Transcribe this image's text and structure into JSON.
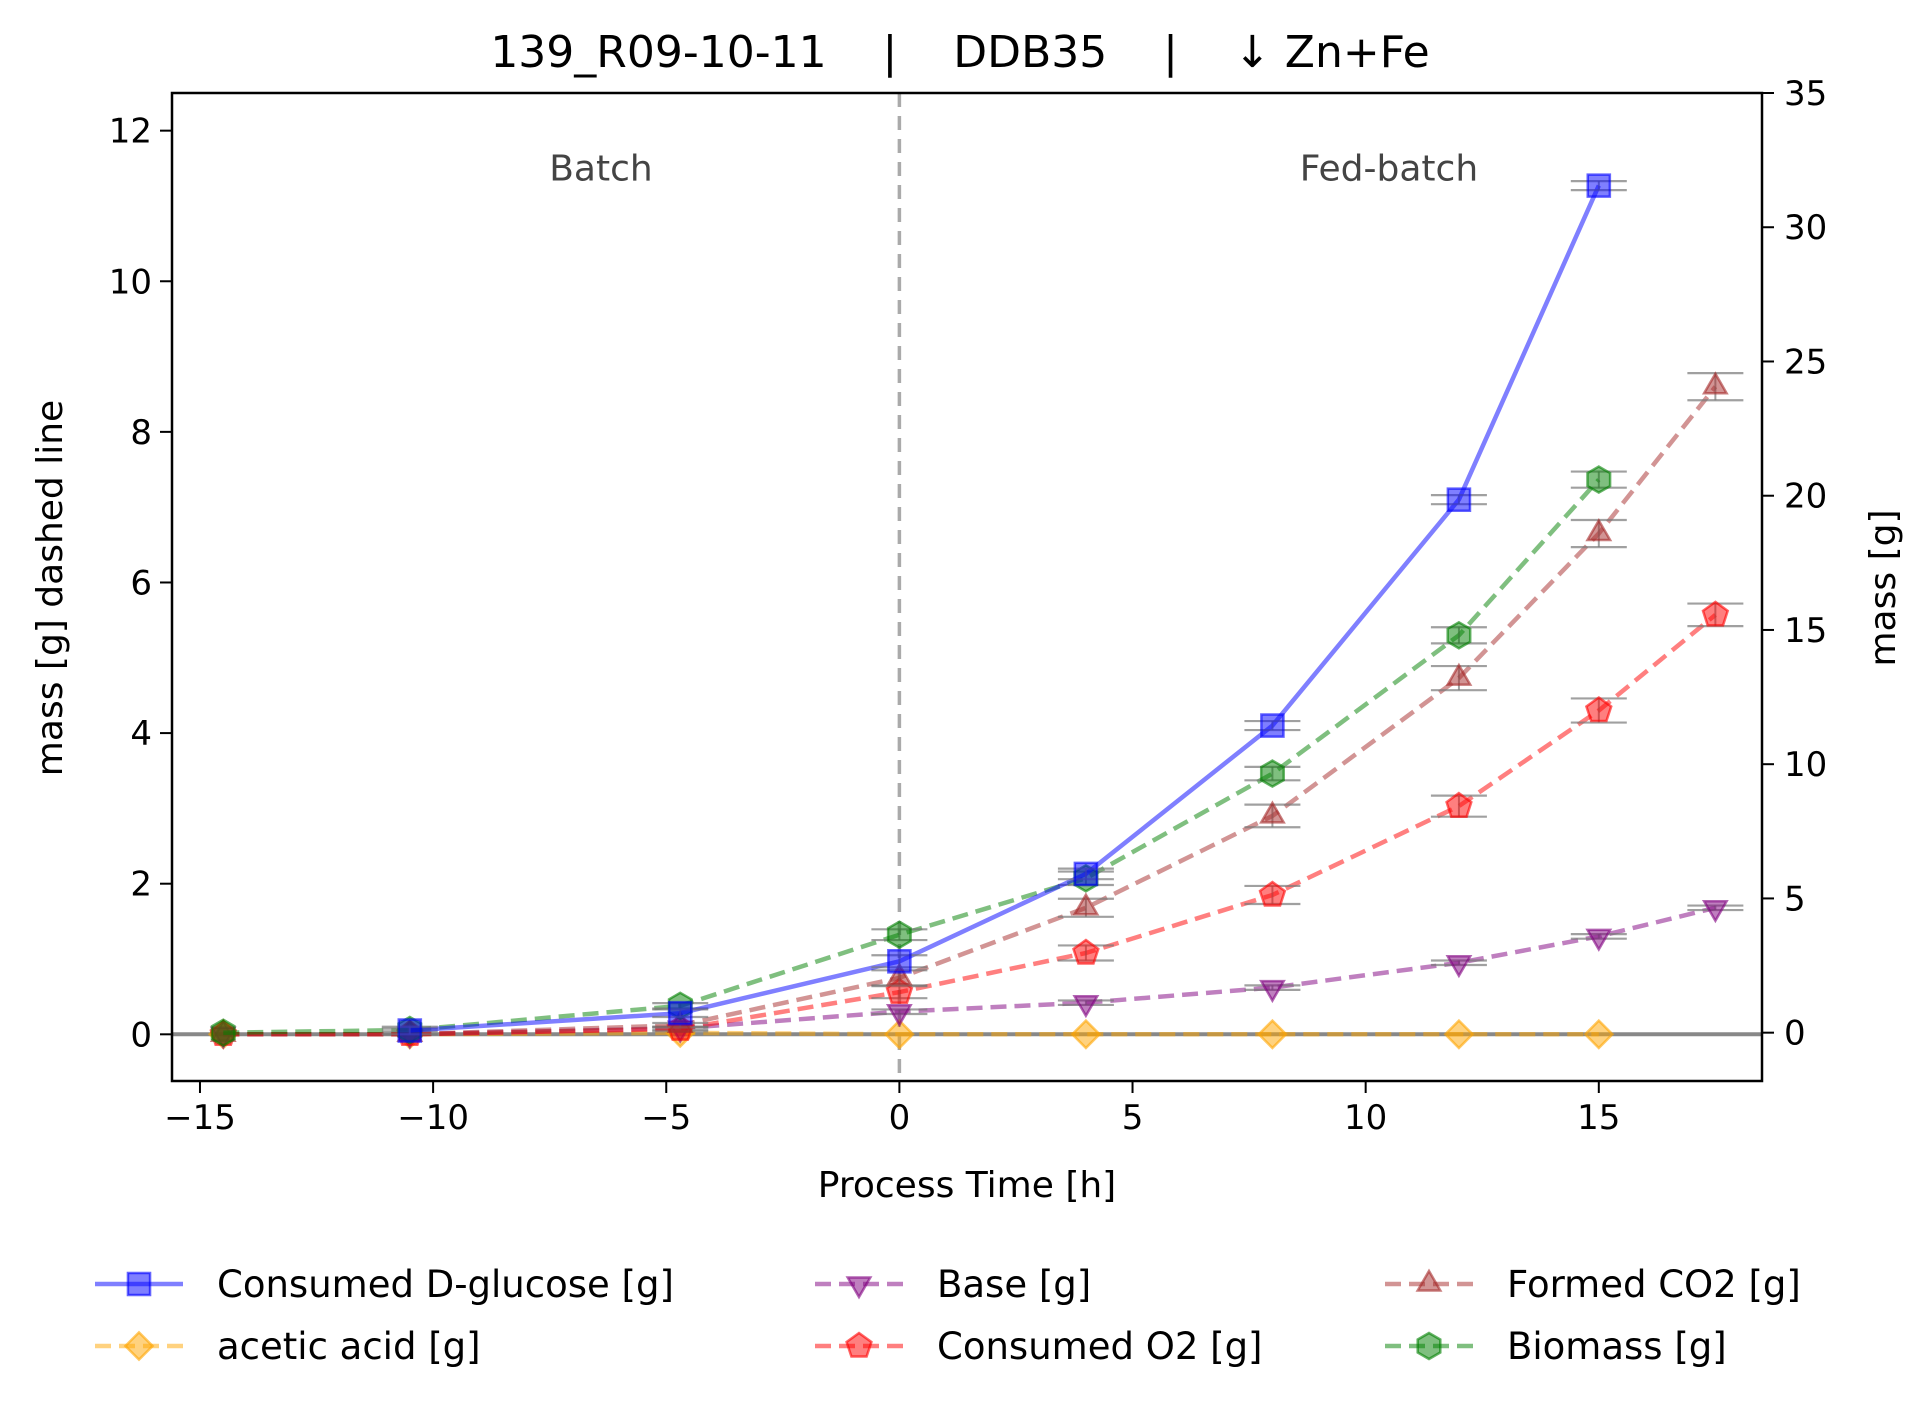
{
  "chart_data": {
    "type": "line",
    "title": "139_R09-10-11    |    DDB35    |    ↓ Zn+Fe",
    "xlabel": "Process Time [h]",
    "ylabel_left": "mass [g] dashed line",
    "ylabel_right": "mass [g]",
    "xlim": [
      -15.6,
      18.5
    ],
    "ylim_left": [
      -0.62,
      12.5
    ],
    "ylim_right": [
      -1.8,
      35
    ],
    "x_ticks": [
      -15,
      -10,
      -5,
      0,
      5,
      10,
      15
    ],
    "x_tick_labels": [
      "−15",
      "−10",
      "−5",
      "0",
      "5",
      "10",
      "15"
    ],
    "y_left_ticks": [
      0,
      2,
      4,
      6,
      8,
      10,
      12
    ],
    "y_right_ticks": [
      0,
      5,
      10,
      15,
      20,
      25,
      30,
      35
    ],
    "vline_x": 0,
    "hline_y": 0,
    "regions": [
      {
        "label": "Batch",
        "x": -6.4,
        "y": 11.5
      },
      {
        "label": "Fed-batch",
        "x": 10.5,
        "y": 11.5
      }
    ],
    "grid": false,
    "legend_position": "bottom",
    "series": [
      {
        "name": "Consumed D-glucose [g]",
        "axis": "left",
        "style": "solid",
        "marker": "square",
        "color": "#0000ff",
        "x": [
          -10.5,
          -4.7,
          0,
          4,
          8,
          12,
          15
        ],
        "y": [
          0.05,
          0.28,
          0.97,
          2.13,
          4.1,
          7.1,
          11.27
        ],
        "err": [
          0.05,
          0.05,
          0.08,
          0.07,
          0.06,
          0.06,
          0.06
        ]
      },
      {
        "name": "acetic acid [g]",
        "axis": "left",
        "style": "dashed",
        "marker": "diamond",
        "color": "#ffa500",
        "x": [
          -14.5,
          -10.5,
          -4.7,
          0,
          4,
          8,
          12,
          15
        ],
        "y": [
          0,
          0,
          0.02,
          0,
          0,
          0,
          0,
          0
        ],
        "err": [
          0,
          0,
          0,
          0,
          0,
          0,
          0,
          0
        ]
      },
      {
        "name": "Base [g]",
        "axis": "left",
        "style": "dashed",
        "marker": "triangle-down",
        "color": "#800080",
        "x": [
          -14.5,
          -10.5,
          -4.7,
          0,
          4,
          8,
          12,
          15,
          17.5
        ],
        "y": [
          0,
          0,
          0.08,
          0.3,
          0.42,
          0.62,
          0.95,
          1.3,
          1.68
        ],
        "err": [
          0,
          0,
          0.02,
          0.03,
          0.03,
          0.03,
          0.03,
          0.03,
          0.03
        ]
      },
      {
        "name": "Consumed O2 [g]",
        "axis": "left",
        "style": "dashed",
        "marker": "pentagon",
        "color": "#ff0000",
        "x": [
          -14.5,
          -10.5,
          -4.7,
          0,
          4,
          8,
          12,
          15,
          17.5
        ],
        "y": [
          0,
          0,
          0.07,
          0.56,
          1.08,
          1.85,
          3.03,
          4.3,
          5.57
        ],
        "err": [
          0,
          0,
          0.03,
          0.08,
          0.1,
          0.12,
          0.14,
          0.16,
          0.15
        ]
      },
      {
        "name": "Formed CO2 [g]",
        "axis": "left",
        "style": "dashed",
        "marker": "triangle-up",
        "color": "#a52a2a",
        "x": [
          -14.5,
          -10.5,
          -4.7,
          0,
          4,
          8,
          12,
          15,
          17.5
        ],
        "y": [
          0,
          0,
          0.12,
          0.75,
          1.68,
          2.9,
          4.73,
          6.65,
          8.6
        ],
        "err": [
          0,
          0,
          0.03,
          0.1,
          0.12,
          0.15,
          0.16,
          0.18,
          0.18
        ]
      },
      {
        "name": "Biomass [g]",
        "axis": "right",
        "style": "dashed",
        "marker": "hexagon",
        "color": "#008000",
        "x": [
          -14.5,
          -10.5,
          -4.7,
          0,
          4,
          8,
          12,
          15
        ],
        "y": [
          0,
          0.1,
          1.0,
          3.65,
          5.75,
          9.65,
          14.8,
          20.6
        ],
        "err": [
          0,
          0.05,
          0.1,
          0.2,
          0.25,
          0.25,
          0.3,
          0.3
        ]
      }
    ]
  }
}
